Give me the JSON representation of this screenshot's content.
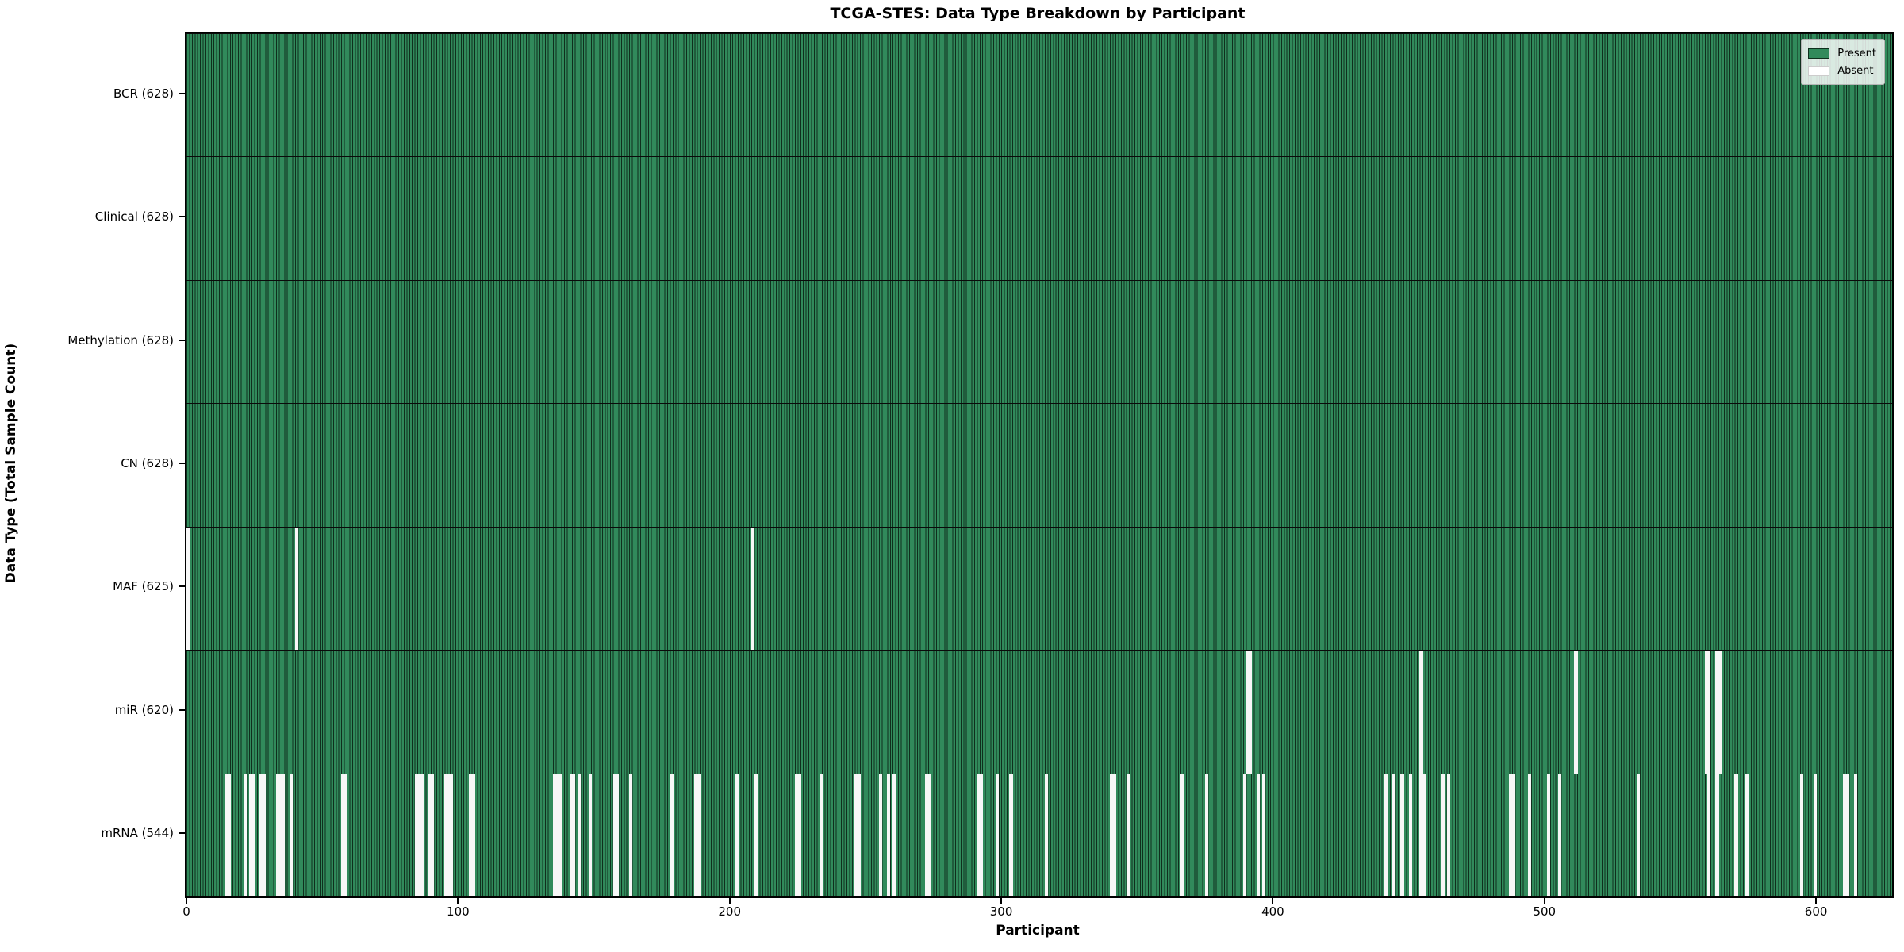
{
  "chart_data": {
    "type": "heatmap",
    "title": "TCGA-STES: Data Type Breakdown by Participant",
    "xlabel": "Participant",
    "ylabel": "Data Type (Total Sample Count)",
    "x_ticks": [
      0,
      100,
      200,
      300,
      400,
      500,
      600
    ],
    "n_participants": 628,
    "x_range": [
      0,
      628
    ],
    "grid": false,
    "legend_position": "upper right",
    "legend": {
      "present": "Present",
      "absent": "Absent"
    },
    "colors": {
      "present_fill": "#318a5b",
      "bar_edge": "#0f2f1d",
      "absent_fill": "#f7f7f7",
      "separator": "#0a0a0a",
      "axis": "#000000"
    },
    "rows": [
      {
        "label": "BCR (628)",
        "name": "BCR",
        "present_count": 628,
        "absent": []
      },
      {
        "label": "Clinical (628)",
        "name": "Clinical",
        "present_count": 628,
        "absent": []
      },
      {
        "label": "Methylation (628)",
        "name": "Methylation",
        "present_count": 628,
        "absent": []
      },
      {
        "label": "CN (628)",
        "name": "CN",
        "present_count": 628,
        "absent": []
      },
      {
        "label": "MAF (625)",
        "name": "MAF",
        "present_count": 625,
        "absent": [
          0,
          40,
          208
        ]
      },
      {
        "label": "miR (620)",
        "name": "miR",
        "present_count": 620,
        "absent": [
          390,
          391,
          454,
          511,
          559,
          560,
          563,
          564
        ]
      },
      {
        "label": "mRNA (544)",
        "name": "mRNA",
        "present_count": 544,
        "absent": [
          14,
          15,
          21,
          23,
          24,
          27,
          28,
          33,
          34,
          35,
          38,
          57,
          58,
          84,
          85,
          86,
          89,
          90,
          95,
          96,
          97,
          104,
          105,
          135,
          136,
          137,
          141,
          142,
          144,
          148,
          157,
          158,
          163,
          178,
          187,
          188,
          202,
          209,
          224,
          225,
          233,
          246,
          247,
          255,
          258,
          260,
          272,
          273,
          291,
          292,
          298,
          303,
          316,
          340,
          341,
          346,
          366,
          375,
          389,
          394,
          396,
          441,
          444,
          447,
          450,
          454,
          455,
          462,
          464,
          487,
          488,
          494,
          501,
          505,
          534,
          560,
          563,
          570,
          574,
          594,
          599,
          610,
          611,
          614
        ]
      }
    ]
  }
}
